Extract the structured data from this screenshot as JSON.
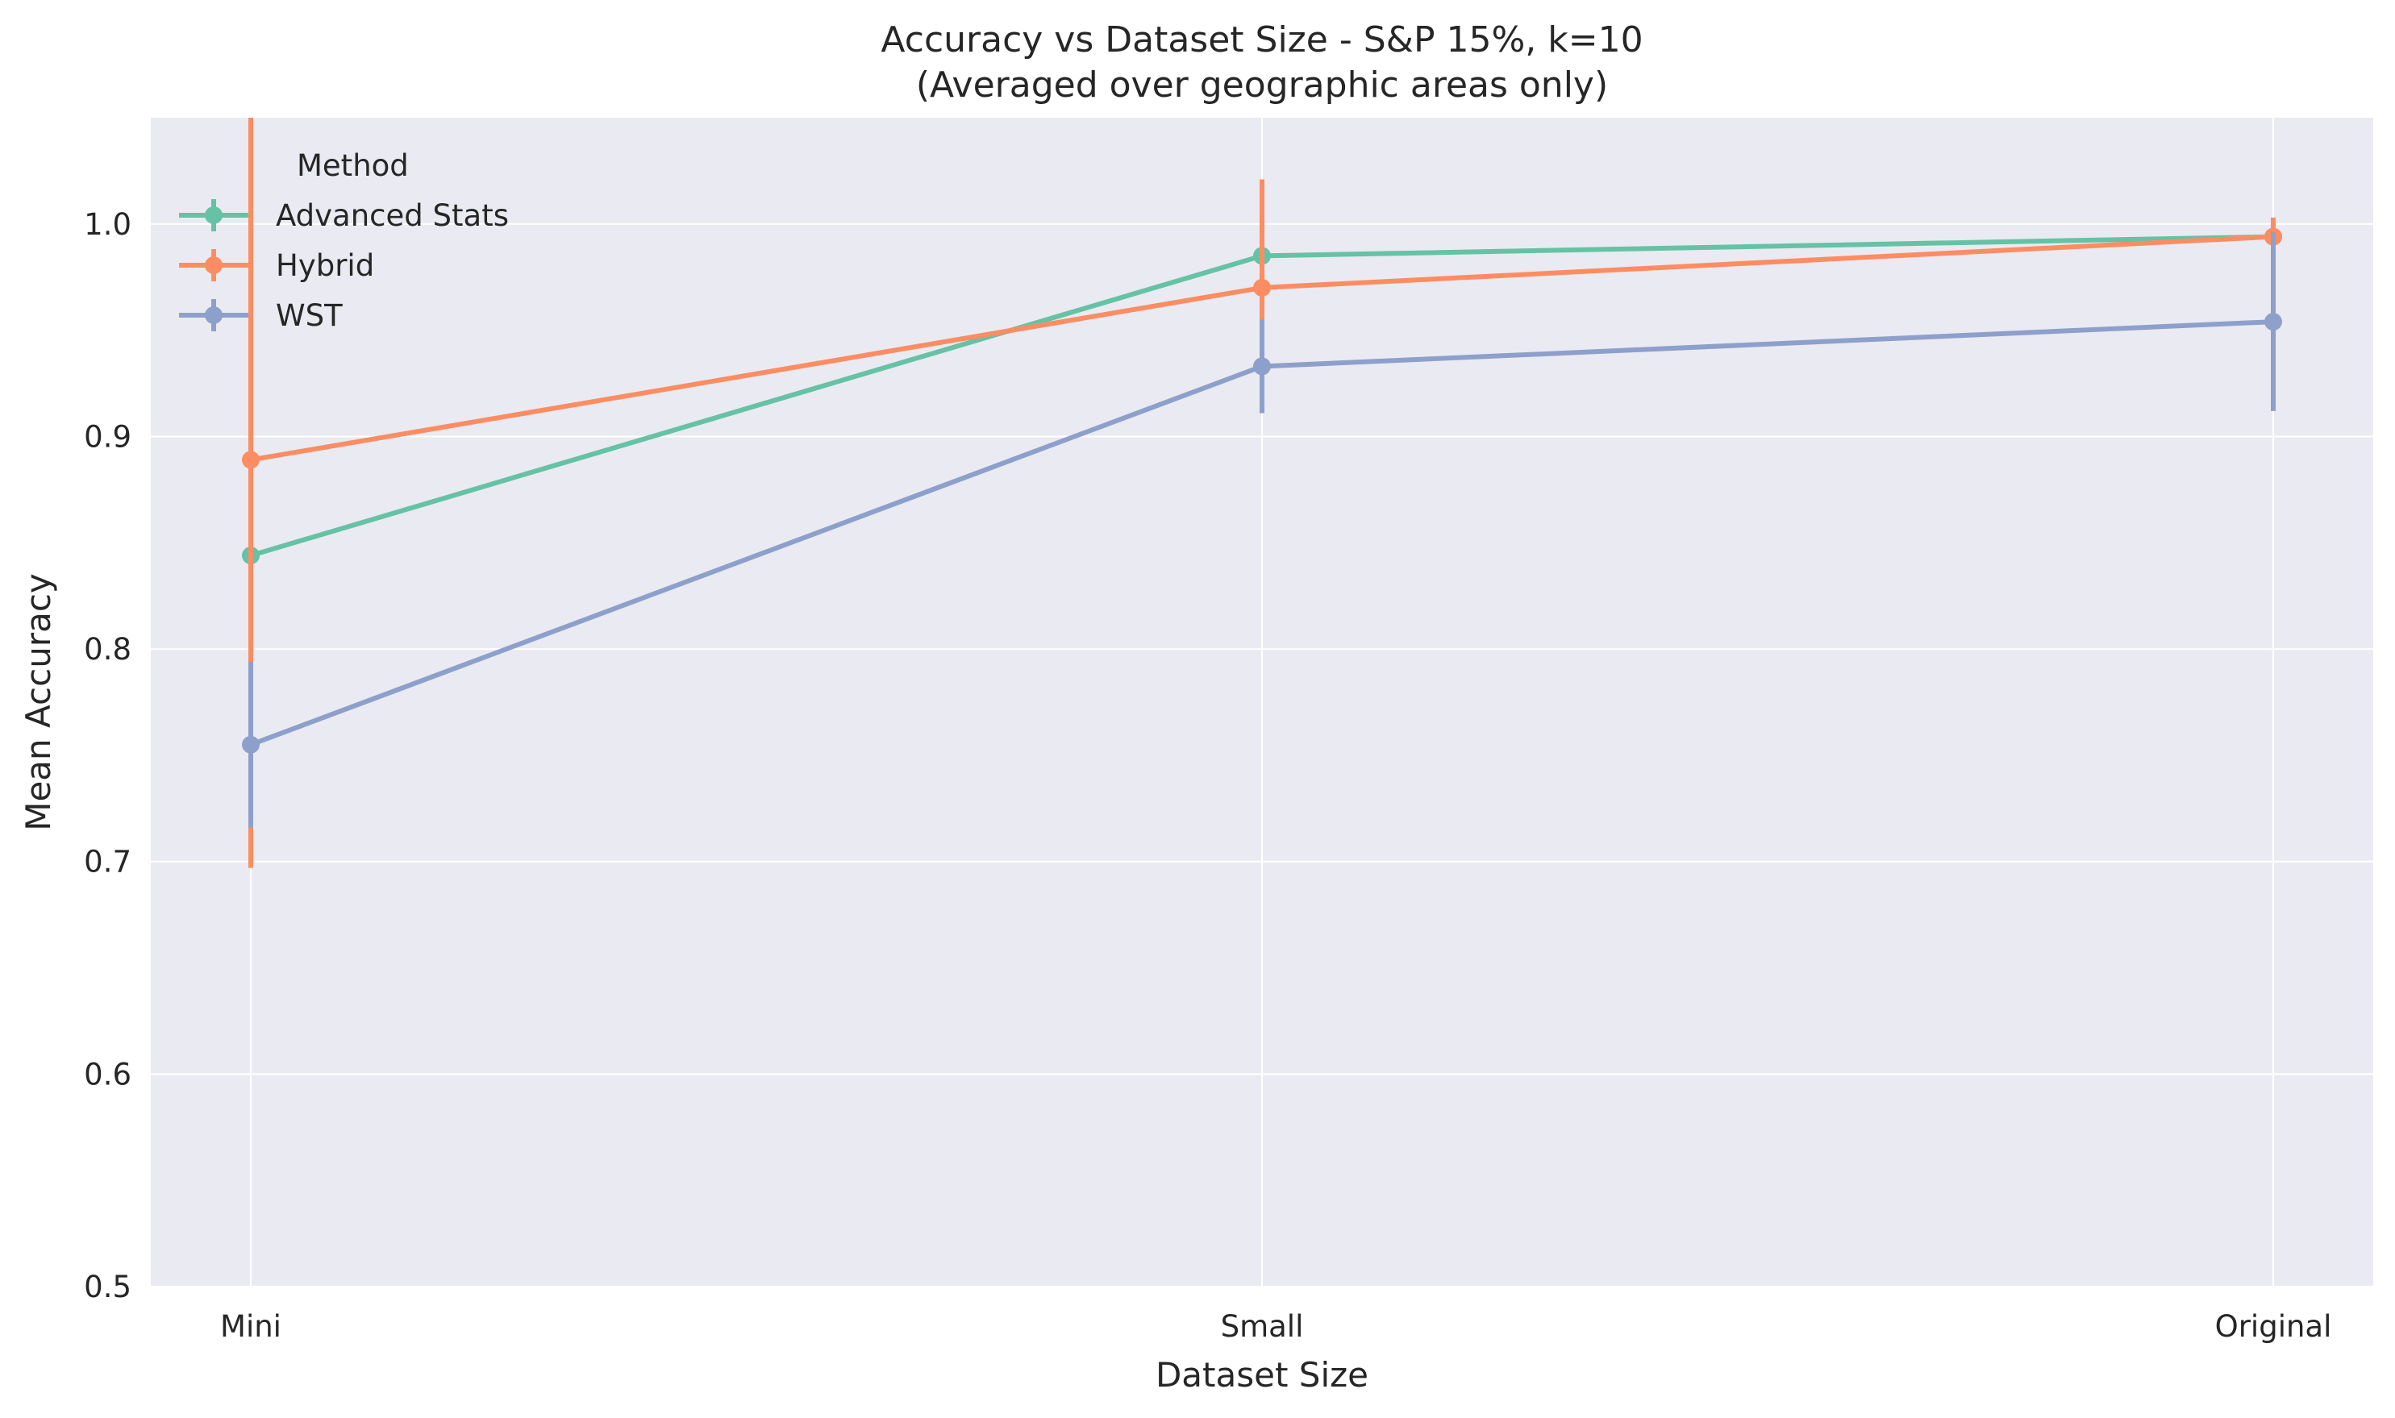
{
  "chart_data": {
    "type": "line",
    "title": "Accuracy vs Dataset Size - S&P 15%, k=10",
    "subtitle": "(Averaged over geographic areas only)",
    "xlabel": "Dataset Size",
    "ylabel": "Mean Accuracy",
    "categories": [
      "Mini",
      "Small",
      "Original"
    ],
    "ylim": [
      0.5,
      1.05
    ],
    "yticks": [
      0.5,
      0.6,
      0.7,
      0.8,
      0.9,
      1.0
    ],
    "ytick_labels": [
      "0.5",
      "0.6",
      "0.7",
      "0.8",
      "0.9",
      "1.0"
    ],
    "grid": true,
    "legend": {
      "title": "Method",
      "placement": "top-left"
    },
    "background": "#eaeaf2",
    "grid_color": "#ffffff",
    "series": [
      {
        "name": "Advanced Stats",
        "color": "#66c2a5",
        "values": [
          0.844,
          0.985,
          0.994
        ],
        "error": [
          0.0,
          0.0,
          0.0
        ]
      },
      {
        "name": "Hybrid",
        "color": "#fc8d62",
        "values": [
          0.889,
          0.97,
          0.994
        ],
        "error": [
          0.192,
          0.051,
          0.009
        ]
      },
      {
        "name": "WST",
        "color": "#8da0cb",
        "values": [
          0.755,
          0.933,
          0.954
        ],
        "error": [
          0.039,
          0.022,
          0.042
        ]
      }
    ]
  }
}
